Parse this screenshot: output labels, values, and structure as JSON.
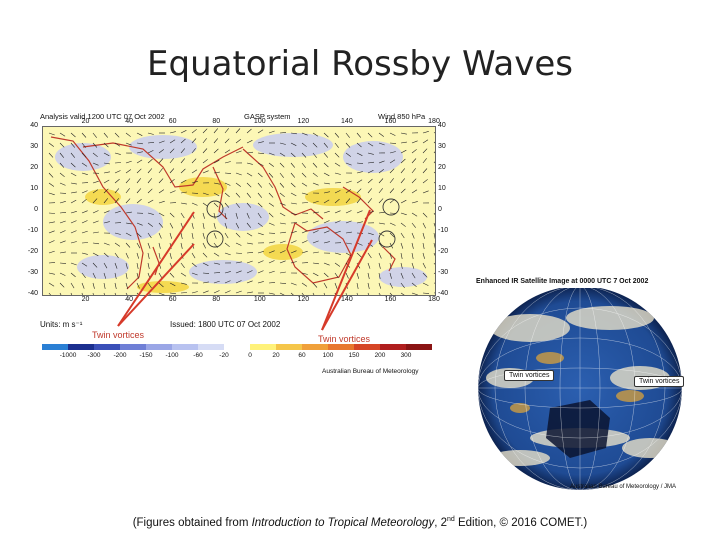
{
  "slide": {
    "title": "Equatorial Rossby Waves"
  },
  "wind_map": {
    "header_left": "Analysis valid 1200 UTC  07 Oct 2002",
    "header_center": "GASP system",
    "header_right": "Wind 850 hPa",
    "lat_labels": [
      "40",
      "30",
      "20",
      "10",
      "0",
      "-10",
      "-20",
      "-30",
      "-40"
    ],
    "lon_labels": [
      "20",
      "40",
      "60",
      "80",
      "100",
      "120",
      "140",
      "160",
      "180"
    ],
    "units": "Units: m s⁻¹",
    "issued": "Issued: 1800 UTC  07 Oct 2002",
    "callout_left": "Twin vortices",
    "callout_right": "Twin vortices",
    "colorbar": {
      "labels": [
        "-1000",
        "-300",
        "-200",
        "-150",
        "-100",
        "-60",
        "-20",
        "0",
        "20",
        "60",
        "100",
        "150",
        "200",
        "300"
      ],
      "colors": [
        "#2a7fd4",
        "#1b2f8f",
        "#3a4fb8",
        "#6f7fd6",
        "#9aa6e6",
        "#b8c2f0",
        "#d6dcf5",
        "#ffffff",
        "#fff27a",
        "#f5c64a",
        "#f0a03a",
        "#e8772e",
        "#d64526",
        "#b01e1e",
        "#8a1414"
      ]
    },
    "credit": "Australian Bureau of Meteorology"
  },
  "satellite": {
    "title": "Enhanced IR Satellite Image at 0000 UTC  7 Oct 2002",
    "callout_left": "Twin vortices",
    "callout_right": "Twin vortices",
    "credit": "Australian Bureau of Meteorology / JMA"
  },
  "footnote": {
    "prefix": "(Figures obtained from ",
    "book": "Introduction to Tropical Meteorology",
    "mid": ", 2",
    "sup": "nd",
    "suffix": " Edition, © 2016 COMET.)"
  }
}
